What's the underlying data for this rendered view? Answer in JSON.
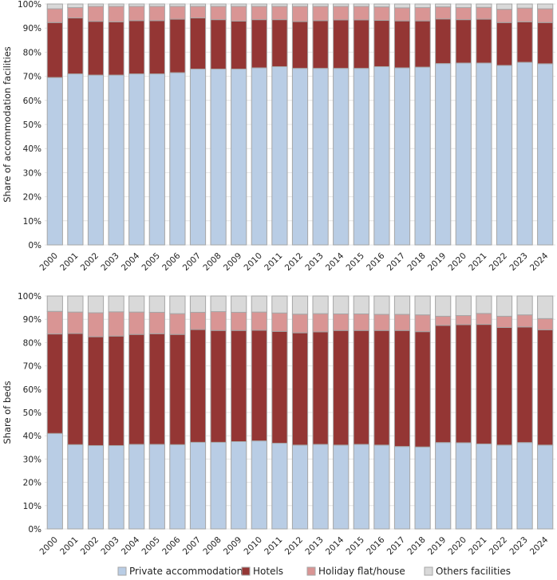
{
  "chart_data": [
    {
      "type": "bar",
      "stacked": true,
      "ylabel": "Share of accommodation facilities",
      "xlabel": "",
      "ylim": [
        0,
        100
      ],
      "ytick_format": "%",
      "yticks": [
        "0%",
        "10%",
        "20%",
        "30%",
        "40%",
        "50%",
        "60%",
        "70%",
        "80%",
        "90%",
        "100%"
      ],
      "grid": true,
      "categories": [
        "2000",
        "2001",
        "2002",
        "2003",
        "2004",
        "2005",
        "2006",
        "2007",
        "2008",
        "2009",
        "2010",
        "2011",
        "2012",
        "2013",
        "2014",
        "2015",
        "2016",
        "2017",
        "2018",
        "2019",
        "2020",
        "2021",
        "2022",
        "2023",
        "2024"
      ],
      "series": [
        {
          "name": "Private accommodations",
          "color": "#b9cde5",
          "values": [
            69.5,
            71.0,
            70.5,
            70.5,
            71.0,
            71.0,
            71.5,
            73.0,
            73.0,
            73.0,
            73.5,
            74.0,
            73.3,
            73.3,
            73.3,
            73.3,
            74.0,
            73.5,
            73.8,
            75.3,
            75.5,
            75.5,
            74.5,
            75.8,
            75.2
          ]
        },
        {
          "name": "Hotels",
          "color": "#943634",
          "values": [
            22.8,
            23.2,
            22.3,
            22.1,
            22.1,
            22.1,
            22.2,
            21.2,
            20.5,
            19.9,
            20.0,
            19.5,
            19.4,
            19.8,
            20.1,
            20.1,
            19.2,
            19.5,
            19.2,
            18.5,
            18.0,
            18.2,
            17.8,
            16.8,
            17.1
          ]
        },
        {
          "name": "Holiday flat/house",
          "color": "#d99594",
          "values": [
            5.7,
            4.3,
            6.2,
            6.4,
            5.9,
            5.9,
            5.3,
            4.8,
            5.5,
            6.1,
            5.5,
            5.5,
            6.3,
            5.9,
            5.6,
            5.6,
            5.6,
            5.4,
            5.5,
            5.0,
            5.0,
            4.9,
            5.5,
            5.7,
            5.7
          ]
        },
        {
          "name": "Others facilities",
          "color": "#d9d9d9",
          "values": [
            2.0,
            1.5,
            1.0,
            1.0,
            1.0,
            1.0,
            1.0,
            1.0,
            1.0,
            1.0,
            1.0,
            1.0,
            1.0,
            1.0,
            1.0,
            1.0,
            1.2,
            1.6,
            1.5,
            1.2,
            1.5,
            1.4,
            2.2,
            1.7,
            2.0
          ]
        }
      ]
    },
    {
      "type": "bar",
      "stacked": true,
      "ylabel": "Share of beds",
      "xlabel": "",
      "ylim": [
        0,
        100
      ],
      "ytick_format": "%",
      "yticks": [
        "0%",
        "10%",
        "20%",
        "30%",
        "40%",
        "50%",
        "60%",
        "70%",
        "80%",
        "90%",
        "100%"
      ],
      "grid": true,
      "categories": [
        "2000",
        "2001",
        "2002",
        "2003",
        "2004",
        "2005",
        "2006",
        "2007",
        "2008",
        "2009",
        "2010",
        "2011",
        "2012",
        "2013",
        "2014",
        "2015",
        "2016",
        "2017",
        "2018",
        "2019",
        "2020",
        "2021",
        "2022",
        "2023",
        "2024"
      ],
      "series": [
        {
          "name": "Private accommodations",
          "color": "#b9cde5",
          "values": [
            41.0,
            36.2,
            35.8,
            35.8,
            36.3,
            36.3,
            36.2,
            37.2,
            37.2,
            37.5,
            37.8,
            36.8,
            36.0,
            36.3,
            36.0,
            36.3,
            36.0,
            35.4,
            35.2,
            37.1,
            37.0,
            36.5,
            36.0,
            37.1,
            36.0
          ]
        },
        {
          "name": "Hotels",
          "color": "#943634",
          "values": [
            42.7,
            47.7,
            46.7,
            47.0,
            47.2,
            47.5,
            47.3,
            48.4,
            48.0,
            47.7,
            47.5,
            48.0,
            48.2,
            48.3,
            49.2,
            48.9,
            49.2,
            49.8,
            49.5,
            50.3,
            50.7,
            51.3,
            50.5,
            49.6,
            49.5
          ]
        },
        {
          "name": "Holiday flat/house",
          "color": "#d99594",
          "values": [
            9.7,
            9.2,
            10.3,
            10.4,
            9.6,
            9.2,
            8.9,
            7.4,
            8.1,
            7.8,
            7.8,
            7.9,
            8.0,
            7.8,
            7.1,
            7.1,
            6.9,
            6.9,
            7.2,
            3.9,
            3.9,
            4.7,
            4.8,
            5.2,
            4.8
          ]
        },
        {
          "name": "Others facilities",
          "color": "#d9d9d9",
          "values": [
            6.6,
            6.9,
            7.2,
            6.8,
            6.9,
            7.0,
            7.6,
            7.0,
            6.7,
            7.0,
            6.9,
            7.3,
            7.8,
            7.6,
            7.7,
            7.7,
            7.9,
            7.9,
            8.1,
            8.7,
            8.4,
            7.5,
            8.7,
            8.1,
            9.7
          ]
        }
      ]
    }
  ],
  "legend": {
    "placement": "bottom",
    "items": [
      "Private accommodations",
      "Hotels",
      "Holiday flat/house",
      "Others facilities"
    ]
  }
}
